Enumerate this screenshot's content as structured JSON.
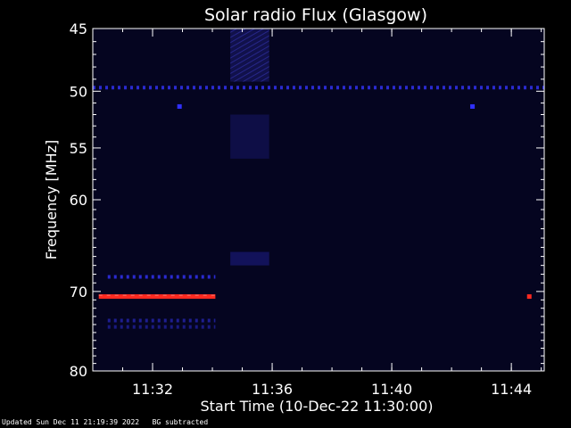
{
  "chart_data": {
    "type": "heatmap",
    "title": "Solar radio Flux (Glasgow)",
    "ylabel": "Frequency [MHz]",
    "xlabel": "Start Time (10-Dec-22 11:30:00)",
    "x_ticks": [
      "11:32",
      "11:36",
      "11:40",
      "11:44"
    ],
    "y_ticks": [
      45,
      50,
      55,
      60,
      70,
      80
    ],
    "xlim_minutes_after_start": [
      0,
      15.1
    ],
    "ylim_mhz": [
      45,
      80
    ],
    "y_scale": "log",
    "background_color": "#050520",
    "features": [
      {
        "kind": "horizontal-band",
        "freq_mhz": 49.7,
        "t_start_min": 0,
        "t_end_min": 15.1,
        "color": "#2a2ad0",
        "dotted": true
      },
      {
        "kind": "horizontal-band",
        "freq_mhz": 68.3,
        "t_start_min": 0.5,
        "t_end_min": 4.1,
        "color": "#2a2ad0",
        "dotted": true
      },
      {
        "kind": "horizontal-band",
        "freq_mhz": 70.6,
        "t_start_min": 0.2,
        "t_end_min": 4.1,
        "color": "#ff2a20",
        "dotted": false
      },
      {
        "kind": "horizontal-band",
        "freq_mhz": 73.5,
        "t_start_min": 0.5,
        "t_end_min": 4.1,
        "color": "#1e1e90",
        "dotted": true
      },
      {
        "kind": "horizontal-band",
        "freq_mhz": 74.3,
        "t_start_min": 0.5,
        "t_end_min": 4.1,
        "color": "#1a1a80",
        "dotted": true
      },
      {
        "kind": "spot",
        "freq_mhz": 70.6,
        "t_min": 14.6,
        "color": "#ff2a20"
      },
      {
        "kind": "spot",
        "freq_mhz": 51.3,
        "t_min": 2.9,
        "color": "#3030ff"
      },
      {
        "kind": "spot",
        "freq_mhz": 51.3,
        "t_min": 12.7,
        "color": "#3030ff"
      },
      {
        "kind": "vertical-patch",
        "t_start_min": 4.6,
        "t_end_min": 5.9,
        "freq_start_mhz": 45,
        "freq_end_mhz": 49.2,
        "color": "#1a1a70"
      },
      {
        "kind": "vertical-patch",
        "t_start_min": 4.6,
        "t_end_min": 5.9,
        "freq_start_mhz": 52,
        "freq_end_mhz": 56,
        "color": "#10104a"
      },
      {
        "kind": "vertical-patch",
        "t_start_min": 4.6,
        "t_end_min": 5.9,
        "freq_start_mhz": 65.5,
        "freq_end_mhz": 67,
        "color": "#141460"
      }
    ]
  },
  "footer": {
    "updated_text": "Updated Sun Dec 11 21:19:39 2022",
    "bg_text": "BG subtracted"
  }
}
